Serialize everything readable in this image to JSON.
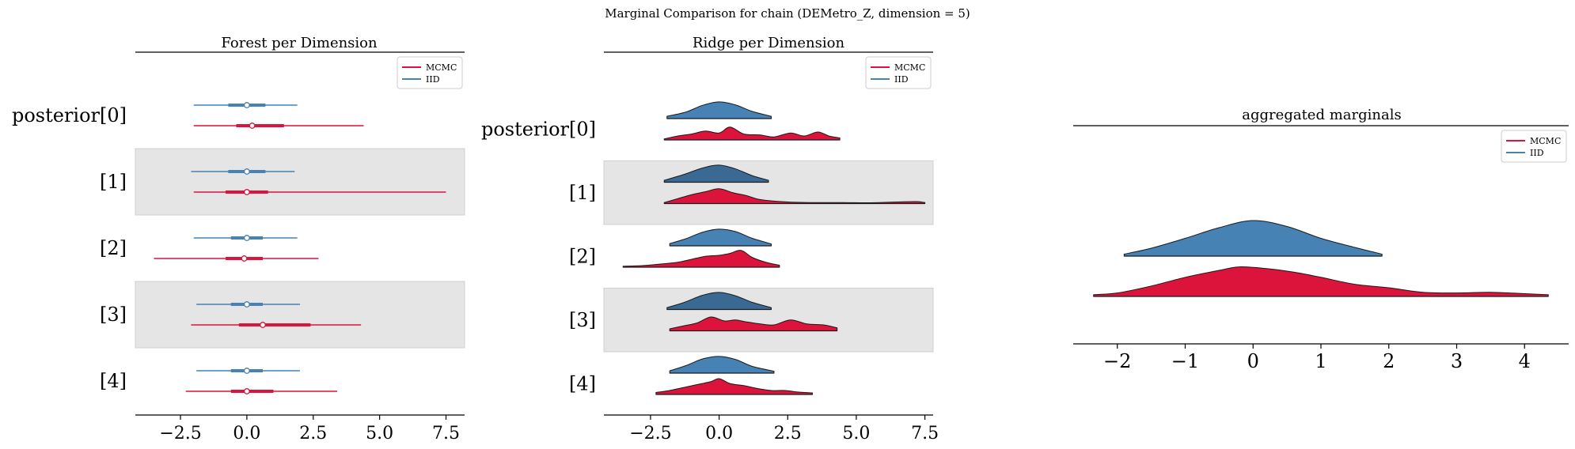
{
  "figure": {
    "suptitle": "Marginal Comparison for chain (DEMetro_Z, dimension = 5)"
  },
  "colors": {
    "mcmc": "#dc143c",
    "iid": "#4682b4",
    "iid_dark": "#3a6a93",
    "band": "#e5e5e5",
    "band_edge": "#d0d0d0"
  },
  "chart_data": [
    {
      "type": "forest",
      "title": "Forest per Dimension",
      "xlim": [
        -4.2,
        8.2
      ],
      "xticks": [
        -2.5,
        0.0,
        2.5,
        5.0,
        7.5
      ],
      "xtick_labels": [
        "−2.5",
        "0.0",
        "2.5",
        "5.0",
        "7.5"
      ],
      "legend": {
        "position": "top-right",
        "entries": [
          "MCMC",
          "IID"
        ]
      },
      "categories": [
        "posterior[0]",
        "[1]",
        "[2]",
        "[3]",
        "[4]"
      ],
      "series": [
        {
          "name": "IID",
          "points": [
            {
              "low": -2.0,
              "q1": -0.7,
              "median": 0.0,
              "q3": 0.7,
              "high": 1.9
            },
            {
              "low": -2.1,
              "q1": -0.7,
              "median": 0.0,
              "q3": 0.7,
              "high": 1.8
            },
            {
              "low": -2.0,
              "q1": -0.6,
              "median": 0.0,
              "q3": 0.6,
              "high": 1.9
            },
            {
              "low": -1.9,
              "q1": -0.6,
              "median": 0.0,
              "q3": 0.6,
              "high": 2.0
            },
            {
              "low": -1.9,
              "q1": -0.6,
              "median": 0.0,
              "q3": 0.6,
              "high": 2.0
            }
          ]
        },
        {
          "name": "MCMC",
          "points": [
            {
              "low": -2.0,
              "q1": -0.4,
              "median": 0.2,
              "q3": 1.4,
              "high": 4.4
            },
            {
              "low": -2.0,
              "q1": -0.8,
              "median": 0.0,
              "q3": 0.8,
              "high": 7.5
            },
            {
              "low": -3.5,
              "q1": -0.8,
              "median": -0.1,
              "q3": 0.6,
              "high": 2.7
            },
            {
              "low": -2.1,
              "q1": -0.3,
              "median": 0.6,
              "q3": 2.4,
              "high": 4.3
            },
            {
              "low": -2.3,
              "q1": -0.6,
              "median": 0.0,
              "q3": 1.0,
              "high": 3.4
            }
          ]
        }
      ]
    },
    {
      "type": "ridge",
      "title": "Ridge per Dimension",
      "xlim": [
        -4.2,
        7.8
      ],
      "xticks": [
        -2.5,
        0.0,
        2.5,
        5.0,
        7.5
      ],
      "xtick_labels": [
        "−2.5",
        "0.0",
        "2.5",
        "5.0",
        "7.5"
      ],
      "legend": {
        "position": "top-right",
        "entries": [
          "MCMC",
          "IID"
        ]
      },
      "categories": [
        "posterior[0]",
        "[1]",
        "[2]",
        "[3]",
        "[4]"
      ],
      "series": [
        {
          "name": "IID",
          "ridges": [
            {
              "x": [
                -1.9,
                -1.2,
                -0.6,
                0.0,
                0.6,
                1.2,
                1.9
              ],
              "y": [
                0.12,
                0.35,
                0.7,
                0.88,
                0.72,
                0.38,
                0.12
              ]
            },
            {
              "x": [
                -2.0,
                -1.3,
                -0.6,
                0.0,
                0.6,
                1.2,
                1.8
              ],
              "y": [
                0.1,
                0.4,
                0.75,
                0.9,
                0.7,
                0.35,
                0.1
              ]
            },
            {
              "x": [
                -1.8,
                -1.2,
                -0.6,
                0.0,
                0.6,
                1.2,
                1.9
              ],
              "y": [
                0.12,
                0.38,
                0.72,
                0.88,
                0.75,
                0.4,
                0.1
              ]
            },
            {
              "x": [
                -1.9,
                -1.3,
                -0.6,
                0.0,
                0.6,
                1.2,
                1.9
              ],
              "y": [
                0.1,
                0.36,
                0.75,
                0.9,
                0.72,
                0.38,
                0.1
              ]
            },
            {
              "x": [
                -1.8,
                -1.2,
                -0.6,
                0.0,
                0.6,
                1.2,
                2.0
              ],
              "y": [
                0.12,
                0.4,
                0.75,
                0.88,
                0.72,
                0.36,
                0.1
              ]
            }
          ]
        },
        {
          "name": "MCMC",
          "ridges": [
            {
              "x": [
                -2.0,
                -1.5,
                -1.0,
                -0.5,
                0.0,
                0.4,
                0.9,
                1.5,
                2.0,
                2.6,
                3.1,
                3.6,
                4.0,
                4.4
              ],
              "y": [
                0.05,
                0.2,
                0.3,
                0.45,
                0.35,
                0.65,
                0.3,
                0.25,
                0.15,
                0.35,
                0.2,
                0.4,
                0.2,
                0.1
              ]
            },
            {
              "x": [
                -2.0,
                -1.5,
                -1.0,
                -0.5,
                0.0,
                0.5,
                1.0,
                1.5,
                2.5,
                3.5,
                4.5,
                5.5,
                6.5,
                7.2,
                7.5
              ],
              "y": [
                0.05,
                0.25,
                0.45,
                0.6,
                0.75,
                0.55,
                0.4,
                0.2,
                0.08,
                0.05,
                0.05,
                0.04,
                0.08,
                0.1,
                0.05
              ]
            },
            {
              "x": [
                -3.5,
                -2.8,
                -2.2,
                -1.5,
                -1.0,
                -0.5,
                0.0,
                0.4,
                0.8,
                1.2,
                1.7,
                2.2
              ],
              "y": [
                0.05,
                0.08,
                0.15,
                0.25,
                0.4,
                0.55,
                0.6,
                0.7,
                0.85,
                0.5,
                0.25,
                0.1
              ]
            },
            {
              "x": [
                -1.8,
                -1.3,
                -0.8,
                -0.3,
                0.2,
                0.6,
                1.0,
                1.5,
                2.0,
                2.6,
                3.2,
                3.8,
                4.3
              ],
              "y": [
                0.1,
                0.25,
                0.4,
                0.7,
                0.5,
                0.55,
                0.45,
                0.35,
                0.3,
                0.55,
                0.35,
                0.3,
                0.15
              ]
            },
            {
              "x": [
                -2.3,
                -1.8,
                -1.3,
                -0.8,
                -0.3,
                0.0,
                0.4,
                0.9,
                1.4,
                1.9,
                2.4,
                2.9,
                3.4
              ],
              "y": [
                0.1,
                0.2,
                0.35,
                0.5,
                0.65,
                0.8,
                0.55,
                0.45,
                0.3,
                0.2,
                0.2,
                0.12,
                0.08
              ]
            }
          ]
        }
      ]
    },
    {
      "type": "ridge",
      "title": "aggregated marginals",
      "xlim": [
        -2.65,
        4.65
      ],
      "xticks": [
        -2,
        -1,
        0,
        1,
        2,
        3,
        4
      ],
      "xtick_labels": [
        "−2",
        "−1",
        "0",
        "1",
        "2",
        "3",
        "4"
      ],
      "legend": {
        "position": "top-right",
        "entries": [
          "MCMC",
          "IID"
        ]
      },
      "series": [
        {
          "name": "IID",
          "ridges": [
            {
              "x": [
                -1.9,
                -1.5,
                -1.0,
                -0.5,
                0.0,
                0.5,
                1.0,
                1.5,
                1.9
              ],
              "y": [
                0.05,
                0.2,
                0.45,
                0.72,
                0.9,
                0.75,
                0.45,
                0.22,
                0.05
              ]
            }
          ]
        },
        {
          "name": "MCMC",
          "ridges": [
            {
              "x": [
                -2.35,
                -2.0,
                -1.5,
                -1.0,
                -0.5,
                -0.2,
                0.2,
                0.6,
                1.0,
                1.5,
                2.0,
                2.5,
                3.0,
                3.5,
                4.0,
                4.35
              ],
              "y": [
                0.05,
                0.1,
                0.3,
                0.55,
                0.75,
                0.85,
                0.8,
                0.7,
                0.55,
                0.35,
                0.25,
                0.12,
                0.1,
                0.12,
                0.08,
                0.05
              ]
            }
          ]
        }
      ]
    }
  ]
}
